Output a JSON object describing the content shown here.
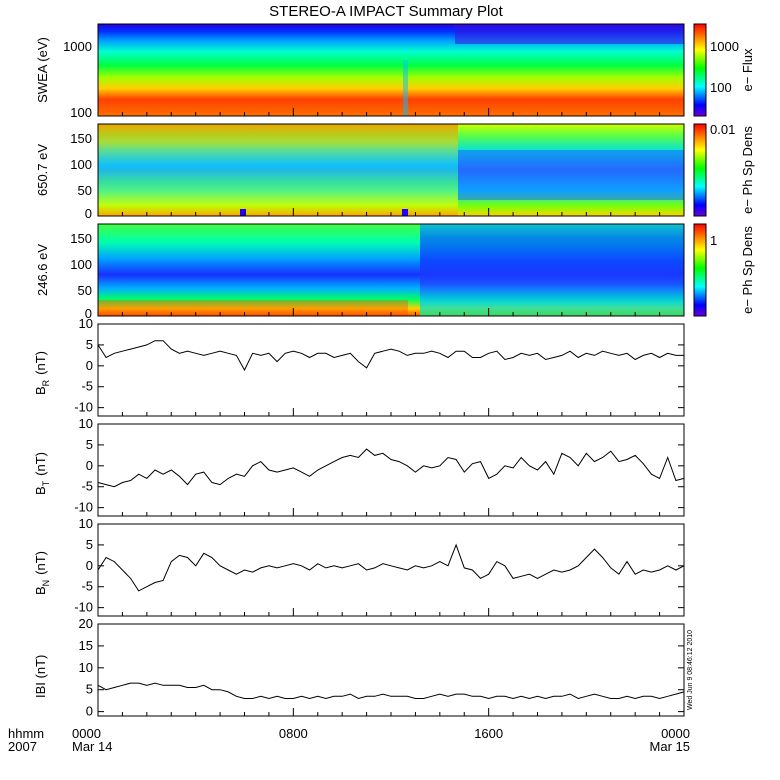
{
  "figure": {
    "title": "STEREO-A IMPACT Summary Plot",
    "stamp": "Wed Jun  9 08:46:12 2010",
    "xaxis": {
      "corner_labels": [
        "hhmm",
        "2007"
      ],
      "ticks": [
        {
          "t": 0,
          "lines": [
            "0000",
            "Mar 14"
          ]
        },
        {
          "t": 480,
          "lines": [
            "0800"
          ]
        },
        {
          "t": 960,
          "lines": [
            "1600"
          ]
        },
        {
          "t": 1440,
          "lines": [
            "0000",
            "Mar 15"
          ]
        }
      ],
      "range_minutes": [
        0,
        1440
      ]
    }
  },
  "chart_data": [
    {
      "type": "heatmap",
      "ylabel": "SWEA (eV)",
      "y_scale": "log",
      "ylim": [
        90,
        2000
      ],
      "y_ticks": [
        "1000",
        "100"
      ],
      "colorbar": {
        "label": "e− Flux",
        "scale": "log",
        "ticks": [
          "1000",
          "100"
        ]
      },
      "description": "energy spectrogram; flux highest near 100-200 eV, lowest above 1500 eV"
    },
    {
      "type": "heatmap",
      "ylabel": "650.7 eV",
      "ylim": [
        0,
        180
      ],
      "y_ticks": [
        "150",
        "100",
        "50",
        "0"
      ],
      "colorbar": {
        "label": "e− Ph Sp Dens",
        "ticks": [
          "0.01"
        ]
      }
    },
    {
      "type": "heatmap",
      "ylabel": "246.6 eV",
      "ylim": [
        0,
        180
      ],
      "y_ticks": [
        "150",
        "100",
        "50",
        "0"
      ],
      "colorbar": {
        "label": "e− Ph Sp Dens",
        "ticks": [
          "1"
        ]
      }
    },
    {
      "type": "line",
      "ylabel": "B_R (nT)",
      "ylabel_main": "B",
      "ylabel_sub": "R",
      "ylabel_unit": "(nT)",
      "ylim": [
        -12,
        10
      ],
      "y_ticks": [
        10,
        5,
        0,
        -5,
        -10
      ],
      "x": [
        0,
        20,
        40,
        60,
        80,
        100,
        120,
        140,
        160,
        180,
        200,
        220,
        240,
        260,
        280,
        300,
        320,
        340,
        360,
        380,
        400,
        420,
        440,
        460,
        480,
        500,
        520,
        540,
        560,
        580,
        600,
        620,
        640,
        660,
        680,
        700,
        720,
        740,
        760,
        780,
        800,
        820,
        840,
        860,
        880,
        900,
        920,
        940,
        960,
        980,
        1000,
        1020,
        1040,
        1060,
        1080,
        1100,
        1120,
        1140,
        1160,
        1180,
        1200,
        1220,
        1240,
        1260,
        1280,
        1300,
        1320,
        1340,
        1360,
        1380,
        1400,
        1420,
        1440
      ],
      "y": [
        5,
        2,
        3,
        3.5,
        4,
        4.5,
        5,
        6,
        6,
        4,
        3,
        3.5,
        3,
        2.5,
        3,
        3.5,
        3,
        2.5,
        -1,
        3,
        2.5,
        3,
        1,
        3,
        3.5,
        3,
        2,
        3,
        3,
        2,
        2.5,
        3,
        1,
        -0.5,
        3,
        3.5,
        4,
        3.5,
        2.5,
        3,
        3,
        3.5,
        3,
        2,
        3.5,
        3.5,
        2,
        2,
        3,
        3.5,
        1.5,
        2,
        3,
        2.5,
        3,
        1.5,
        2,
        2.5,
        3.5,
        2,
        3,
        2.5,
        3.5,
        3,
        2.5,
        3,
        1.5,
        2.5,
        3,
        2,
        3,
        2.5,
        2.5
      ]
    },
    {
      "type": "line",
      "ylabel": "B_T (nT)",
      "ylabel_main": "B",
      "ylabel_sub": "T",
      "ylabel_unit": "(nT)",
      "ylim": [
        -12,
        10
      ],
      "y_ticks": [
        10,
        5,
        0,
        -5,
        -10
      ],
      "x": [
        0,
        20,
        40,
        60,
        80,
        100,
        120,
        140,
        160,
        180,
        200,
        220,
        240,
        260,
        280,
        300,
        320,
        340,
        360,
        380,
        400,
        420,
        440,
        460,
        480,
        500,
        520,
        540,
        560,
        580,
        600,
        620,
        640,
        660,
        680,
        700,
        720,
        740,
        760,
        780,
        800,
        820,
        840,
        860,
        880,
        900,
        920,
        940,
        960,
        980,
        1000,
        1020,
        1040,
        1060,
        1080,
        1100,
        1120,
        1140,
        1160,
        1180,
        1200,
        1220,
        1240,
        1260,
        1280,
        1300,
        1320,
        1340,
        1360,
        1380,
        1400,
        1420,
        1440
      ],
      "y": [
        -4,
        -4.5,
        -5,
        -4,
        -3.5,
        -2,
        -3,
        -1,
        -2,
        -1,
        -2.5,
        -4.5,
        -2,
        -1.5,
        -4,
        -4.5,
        -3,
        -2,
        -2.5,
        0,
        1,
        -1,
        -1.5,
        -1,
        -0.5,
        -1.5,
        -2.5,
        -1,
        0,
        1,
        2,
        2.5,
        2,
        4,
        2.5,
        3,
        1.5,
        1,
        0,
        -1.5,
        0,
        -0.5,
        0,
        2,
        1.5,
        -1.5,
        0.5,
        1,
        -3,
        -2,
        0,
        -0.5,
        2,
        0,
        -1,
        1,
        -2,
        3,
        2,
        0,
        3,
        1,
        2,
        3.5,
        1,
        1.5,
        2.5,
        0.5,
        -2,
        -3,
        2,
        -3.5,
        -3
      ]
    },
    {
      "type": "line",
      "ylabel": "B_N (nT)",
      "ylabel_main": "B",
      "ylabel_sub": "N",
      "ylabel_unit": "(nT)",
      "ylim": [
        -12,
        10
      ],
      "y_ticks": [
        10,
        5,
        0,
        -5,
        -10
      ],
      "x": [
        0,
        20,
        40,
        60,
        80,
        100,
        120,
        140,
        160,
        180,
        200,
        220,
        240,
        260,
        280,
        300,
        320,
        340,
        360,
        380,
        400,
        420,
        440,
        460,
        480,
        500,
        520,
        540,
        560,
        580,
        600,
        620,
        640,
        660,
        680,
        700,
        720,
        740,
        760,
        780,
        800,
        820,
        840,
        860,
        880,
        900,
        920,
        940,
        960,
        980,
        1000,
        1020,
        1040,
        1060,
        1080,
        1100,
        1120,
        1140,
        1160,
        1180,
        1200,
        1220,
        1240,
        1260,
        1280,
        1300,
        1320,
        1340,
        1360,
        1380,
        1400,
        1420,
        1440
      ],
      "y": [
        -1,
        2,
        1,
        -1,
        -3,
        -6,
        -5,
        -4,
        -3.5,
        1,
        2.5,
        2,
        0,
        3,
        2,
        0,
        -1,
        -2,
        -1,
        -1.5,
        -0.5,
        0,
        -0.5,
        0,
        0.5,
        0,
        -1,
        0.5,
        -0.5,
        0,
        -0.5,
        0,
        0.5,
        -1,
        -0.5,
        0.5,
        0,
        -0.5,
        -1,
        0,
        -0.5,
        0,
        1,
        0,
        5,
        -0.5,
        -1,
        -3,
        -2,
        1,
        0,
        -3,
        -2.5,
        -2,
        -3,
        -2,
        -1,
        -1.5,
        -1,
        0,
        2,
        4,
        2,
        -0.5,
        -2,
        1,
        -2,
        -1,
        -1.5,
        -1,
        0,
        -1,
        0
      ]
    },
    {
      "type": "line",
      "ylabel": "|B| (nT)",
      "ylabel_main": "IBI (nT)",
      "ylim": [
        -1,
        20
      ],
      "y_ticks": [
        20,
        15,
        10,
        5,
        0
      ],
      "x": [
        0,
        20,
        40,
        60,
        80,
        100,
        120,
        140,
        160,
        180,
        200,
        220,
        240,
        260,
        280,
        300,
        320,
        340,
        360,
        380,
        400,
        420,
        440,
        460,
        480,
        500,
        520,
        540,
        560,
        580,
        600,
        620,
        640,
        660,
        680,
        700,
        720,
        740,
        760,
        780,
        800,
        820,
        840,
        860,
        880,
        900,
        920,
        940,
        960,
        980,
        1000,
        1020,
        1040,
        1060,
        1080,
        1100,
        1120,
        1140,
        1160,
        1180,
        1200,
        1220,
        1240,
        1260,
        1280,
        1300,
        1320,
        1340,
        1360,
        1380,
        1400,
        1420,
        1440
      ],
      "y": [
        6,
        5,
        5.5,
        6,
        6.5,
        6.5,
        6,
        6.5,
        6,
        6,
        6,
        5.5,
        5.5,
        6,
        5,
        5,
        4.5,
        3.5,
        3,
        3,
        3.5,
        3,
        3.5,
        3,
        3,
        3.5,
        3,
        3.5,
        3,
        3.5,
        3.5,
        4,
        3,
        3.5,
        3.5,
        4,
        3.5,
        3.5,
        3.5,
        3,
        3,
        3.5,
        4,
        3.5,
        4,
        4,
        3.5,
        3.5,
        3,
        3.5,
        3.5,
        3,
        3.5,
        3,
        3.5,
        3,
        3.5,
        3.5,
        4,
        3,
        3.5,
        4,
        3.5,
        3,
        3,
        3.5,
        3,
        3.5,
        3.5,
        3,
        3.5,
        4,
        4.5
      ]
    }
  ]
}
